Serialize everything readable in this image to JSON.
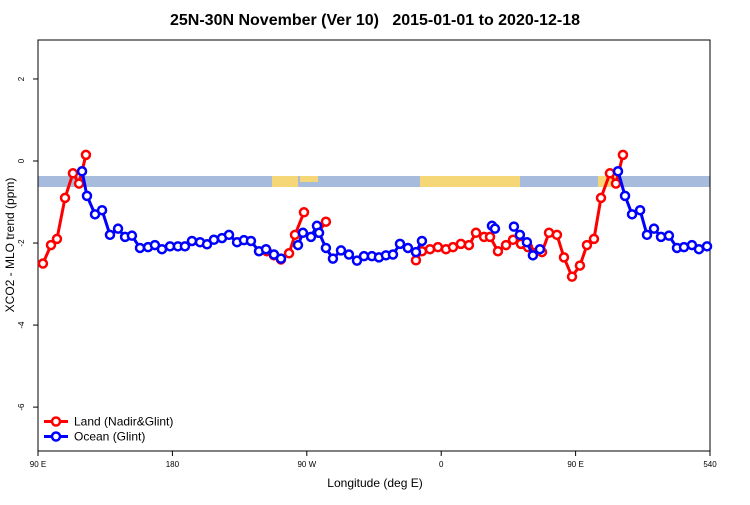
{
  "chart_data": {
    "type": "line",
    "title": "25N-30N November (Ver 10)   2015-01-01 to 2020-12-18",
    "x_label": "Longitude (deg E)",
    "y_label": "XCO2 - MLO trend (ppm)",
    "xlim": [
      90,
      540
    ],
    "ylim": [
      -7.07,
      2.95
    ],
    "xticks": [
      {
        "value": 90,
        "label": "90 E"
      },
      180,
      {
        "value": 270,
        "label": "90 W"
      },
      {
        "value": 360,
        "label": "0"
      },
      {
        "value": 450,
        "label": "90 E"
      },
      540
    ],
    "yticks": [
      -6,
      -4,
      -2,
      0,
      2
    ],
    "legend": "bottom-left",
    "series": [
      {
        "name": "Land (Nadir&Glint)",
        "color": "#ff0000",
        "x": [
          93.3,
          98.7,
          102.7,
          108.1,
          113.4,
          117.5,
          122.1,
          null,
          243.3,
          248,
          252.7,
          258.1,
          262.1,
          268.1,
          null,
          277.5,
          282.8,
          null,
          343.1,
          347.1,
          352.5,
          357.8,
          363.2,
          367.9,
          373.2,
          378.6,
          383.3,
          388.7,
          392.7,
          398,
          403.4,
          408.1,
          413.4,
          418.1,
          427.5,
          432.2,
          437.5,
          442.2,
          447.6,
          452.9,
          457.6,
          462.3,
          467,
          473,
          477,
          481.7
        ],
        "values": [
          -2.5,
          -2.05,
          -1.9,
          -0.9,
          -0.3,
          -0.55,
          0.15,
          null,
          -2.2,
          -2.3,
          -2.4,
          -2.25,
          -1.8,
          -1.25,
          null,
          -1.75,
          -1.48,
          null,
          -2.42,
          -2.2,
          -2.15,
          -2.1,
          -2.15,
          -2.1,
          -2.02,
          -2.05,
          -1.75,
          -1.85,
          -1.85,
          -2.2,
          -2.05,
          -1.92,
          -2.02,
          -2.1,
          -2.22,
          -1.75,
          -1.8,
          -2.35,
          -2.82,
          -2.55,
          -2.05,
          -1.9,
          -0.9,
          -0.3,
          -0.55,
          0.15
        ]
      },
      {
        "name": "Ocean (Glint)",
        "color": "#0000ff",
        "x": [
          119.5,
          122.8,
          128.2,
          132.9,
          138.2,
          143.6,
          148.3,
          152.9,
          158.3,
          163.7,
          168.3,
          173,
          178.4,
          183.7,
          188.4,
          193.1,
          198.5,
          203.2,
          207.8,
          213.2,
          217.9,
          223.3,
          227.9,
          232.6,
          238,
          242.7,
          248,
          252.7,
          null,
          264.1,
          267.4,
          272.8,
          276.8,
          278.2,
          282.8,
          287.5,
          292.9,
          298.2,
          303.6,
          308.3,
          313.6,
          318.3,
          323,
          327.7,
          332.4,
          337.7,
          343.1,
          347.1,
          null,
          394,
          396,
          null,
          408.7,
          412.7,
          417.4,
          421.4,
          426.1,
          null,
          478.4,
          483.1,
          487.8,
          493.2,
          497.8,
          502.5,
          507.2,
          512.5,
          517.9,
          522.6,
          527.9,
          532.6,
          538
        ],
        "values": [
          -0.25,
          -0.85,
          -1.3,
          -1.2,
          -1.8,
          -1.65,
          -1.85,
          -1.82,
          -2.12,
          -2.1,
          -2.05,
          -2.15,
          -2.08,
          -2.08,
          -2.08,
          -1.95,
          -1.98,
          -2.03,
          -1.92,
          -1.88,
          -1.8,
          -1.98,
          -1.93,
          -1.95,
          -2.2,
          -2.15,
          -2.28,
          -2.38,
          null,
          -2.05,
          -1.75,
          -1.85,
          -1.58,
          -1.75,
          -2.12,
          -2.38,
          -2.18,
          -2.28,
          -2.43,
          -2.32,
          -2.32,
          -2.35,
          -2.3,
          -2.28,
          -2.02,
          -2.12,
          -2.22,
          -1.95,
          null,
          -1.58,
          -1.65,
          null,
          -1.6,
          -1.8,
          -1.98,
          -2.3,
          -2.15,
          null,
          -0.25,
          -0.85,
          -1.3,
          -1.2,
          -1.8,
          -1.65,
          -1.85,
          -1.82,
          -2.12,
          -2.1,
          -2.05,
          -2.15,
          -2.08
        ]
      }
    ]
  }
}
